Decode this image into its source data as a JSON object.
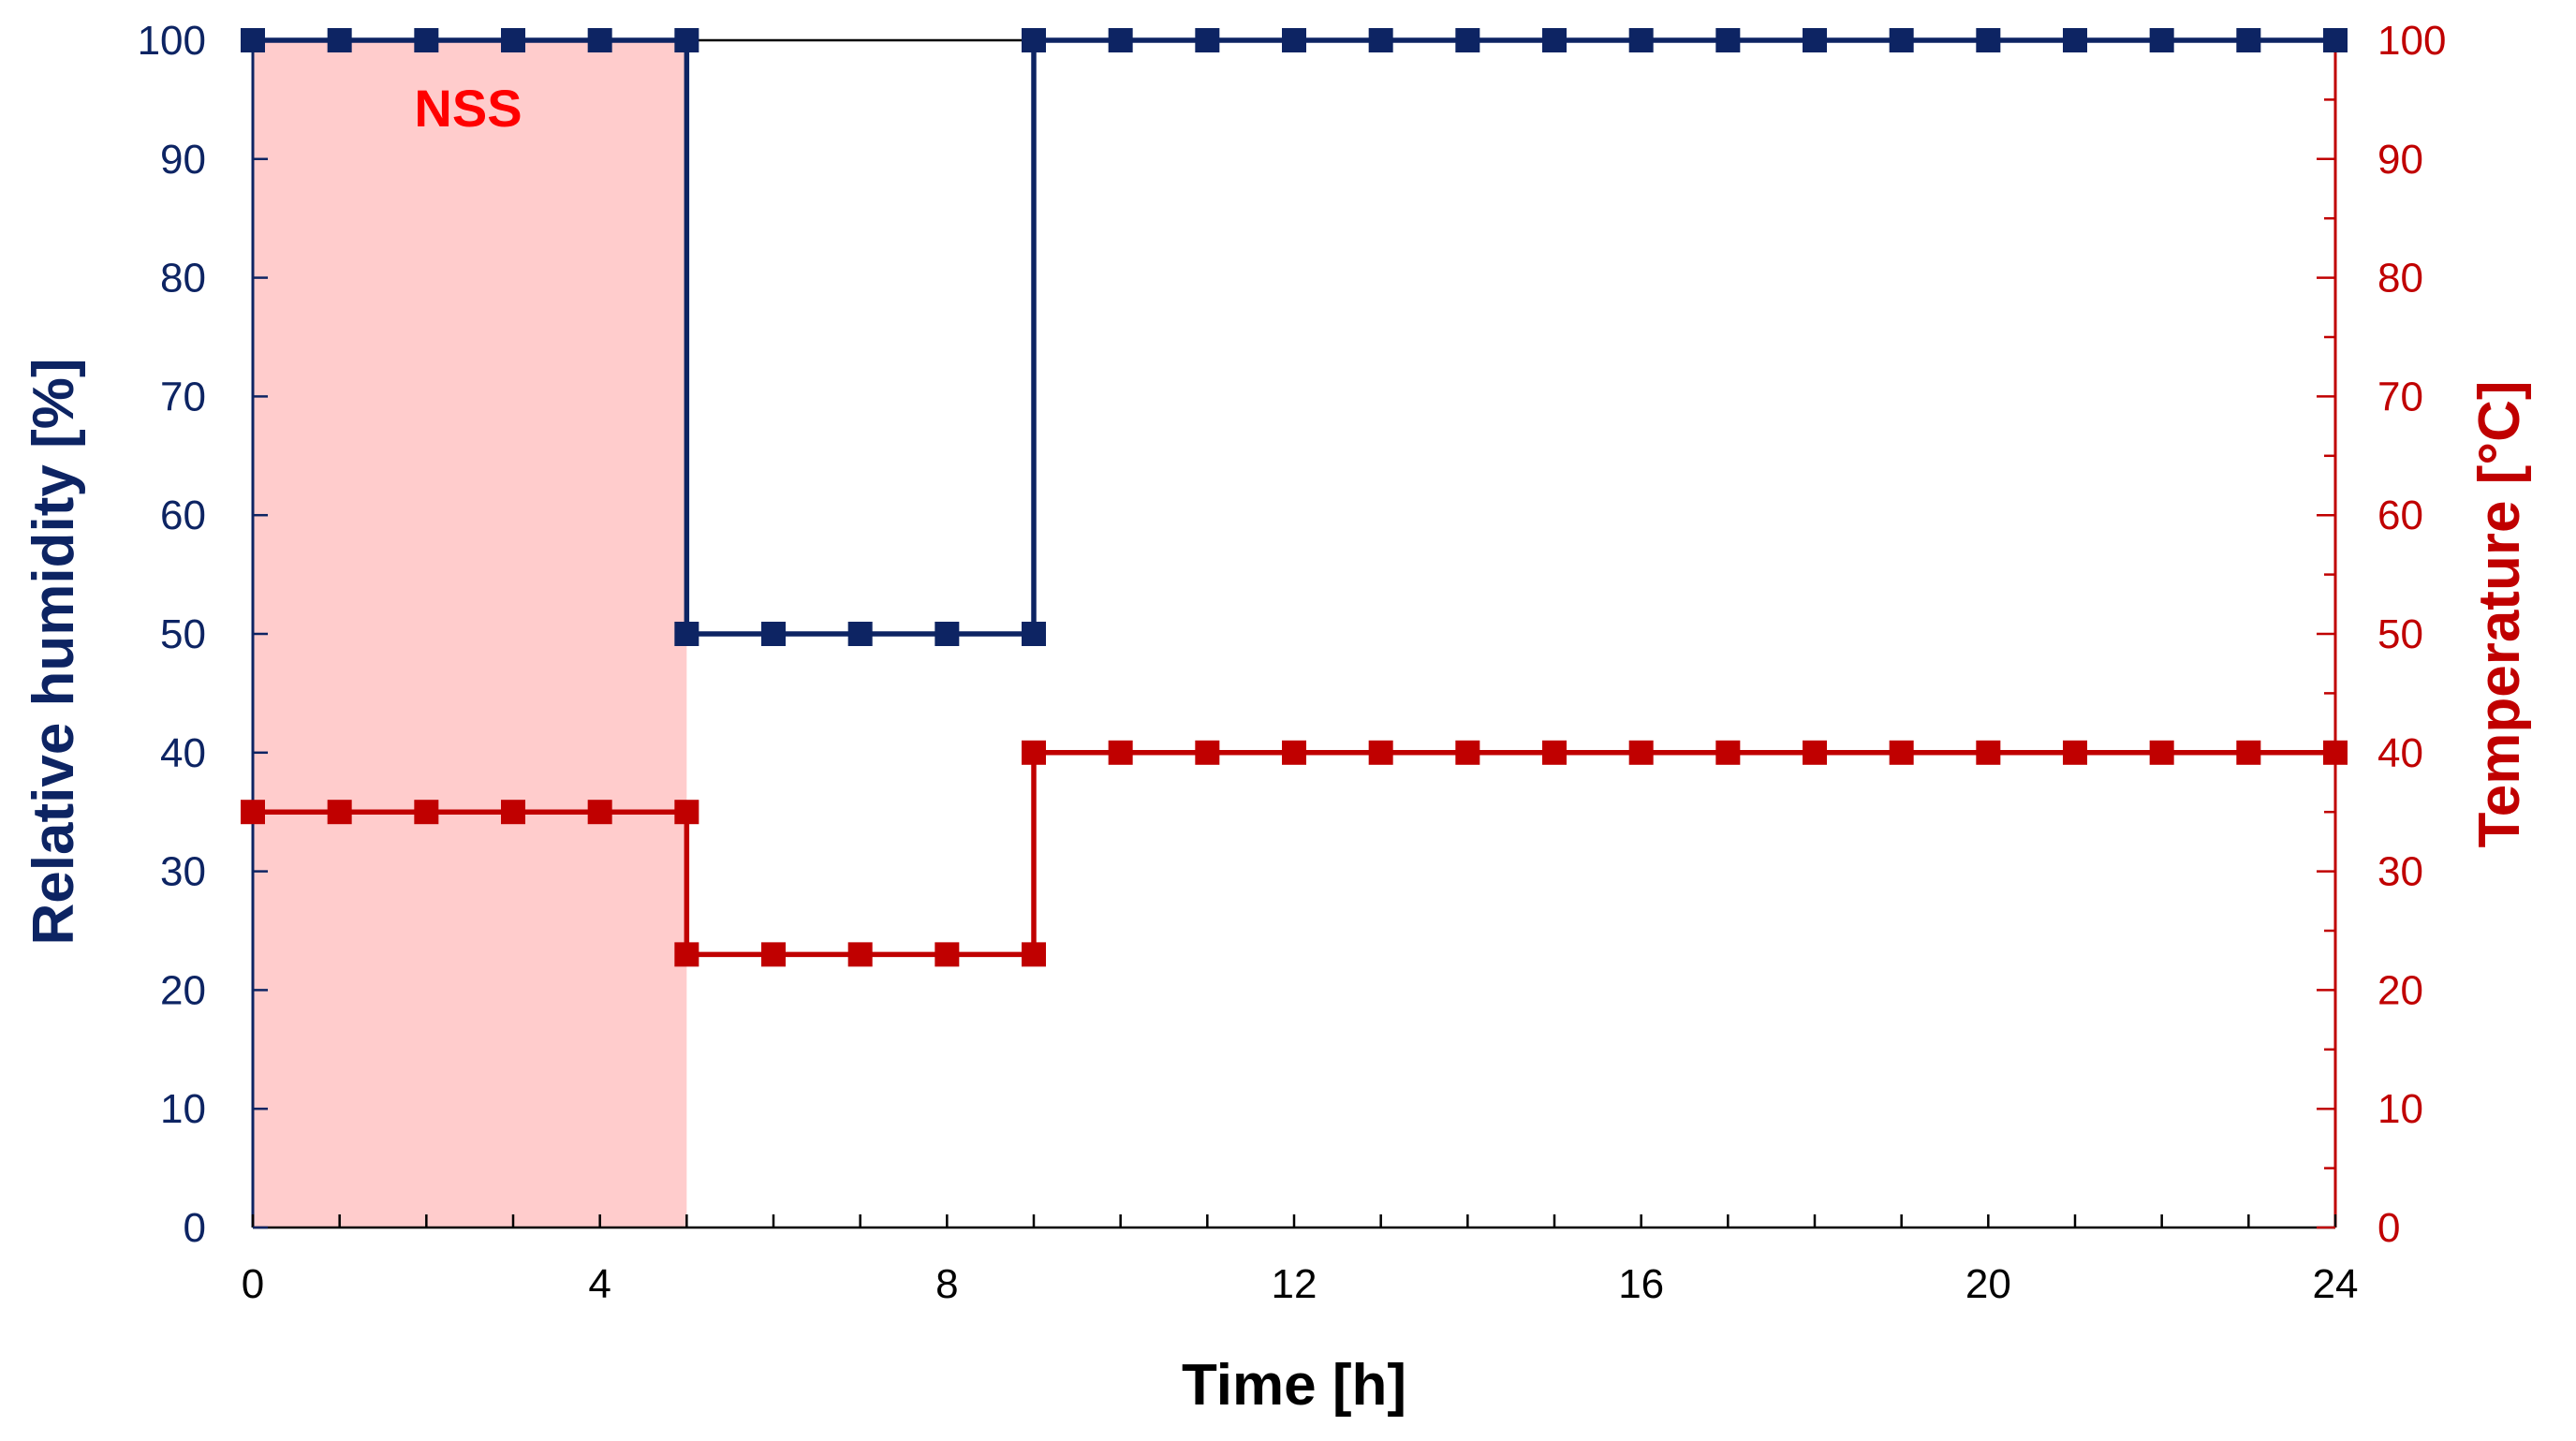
{
  "chart_data": {
    "type": "line",
    "title": "",
    "xlabel": "Time [h]",
    "ylabel_left": "Relative humidity [%]",
    "ylabel_right": "Temperature [°C]",
    "xlim": [
      0,
      24
    ],
    "ylim_left": [
      0,
      100
    ],
    "ylim_right": [
      0,
      100
    ],
    "x_ticks": [
      0,
      4,
      8,
      12,
      16,
      20,
      24
    ],
    "y_ticks_left": [
      0,
      10,
      20,
      30,
      40,
      50,
      60,
      70,
      80,
      90,
      100
    ],
    "y_ticks_right": [
      0,
      10,
      20,
      30,
      40,
      50,
      60,
      70,
      80,
      90,
      100
    ],
    "step": "post-vertical",
    "grid": false,
    "legend": "none",
    "shaded_region": {
      "x_start": 0,
      "x_end": 5,
      "label": "NSS",
      "color": "#ffcccc",
      "label_color": "#ff0000"
    },
    "series": [
      {
        "axis": "left",
        "color": "#0d2463",
        "marker": "square",
        "x": [
          0,
          1,
          2,
          3,
          4,
          5,
          5,
          6,
          7,
          8,
          9,
          9,
          10,
          11,
          12,
          13,
          14,
          15,
          16,
          17,
          18,
          19,
          20,
          21,
          22,
          23,
          24
        ],
        "values": [
          100,
          100,
          100,
          100,
          100,
          100,
          50,
          50,
          50,
          50,
          50,
          100,
          100,
          100,
          100,
          100,
          100,
          100,
          100,
          100,
          100,
          100,
          100,
          100,
          100,
          100,
          100
        ]
      },
      {
        "axis": "right",
        "color": "#c00000",
        "marker": "square",
        "x": [
          0,
          1,
          2,
          3,
          4,
          5,
          5,
          6,
          7,
          8,
          9,
          9,
          10,
          11,
          12,
          13,
          14,
          15,
          16,
          17,
          18,
          19,
          20,
          21,
          22,
          23,
          24
        ],
        "values": [
          35,
          35,
          35,
          35,
          35,
          35,
          23,
          23,
          23,
          23,
          23,
          40,
          40,
          40,
          40,
          40,
          40,
          40,
          40,
          40,
          40,
          40,
          40,
          40,
          40,
          40,
          40
        ]
      }
    ],
    "colors": {
      "left_axis": "#0d2463",
      "right_axis": "#c00000",
      "frame": "#000000"
    }
  }
}
